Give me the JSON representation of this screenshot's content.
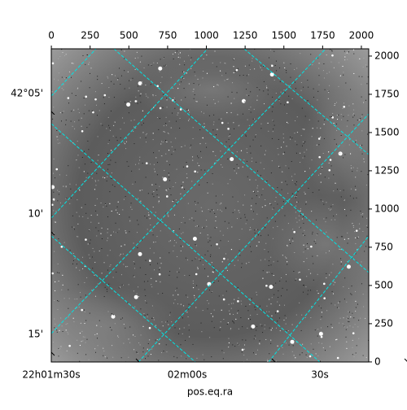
{
  "chart_data": {
    "type": "image",
    "xlabel": "pos.eq.ra",
    "xlim": [
      -0.5,
      2047.5
    ],
    "xticks": [
      0,
      250,
      500,
      750,
      1000,
      1250,
      1500,
      1750,
      2000
    ],
    "ylim": [
      -0.5,
      2047.5
    ],
    "yticks": [
      0,
      250,
      500,
      750,
      1000,
      1250,
      1500,
      1750,
      2000
    ],
    "ra_tick_labels": [
      "22h01m30s",
      "02m00s",
      "30s"
    ],
    "dec_tick_labels": [
      "42°05'",
      "10'",
      "15'"
    ],
    "grid": true,
    "grid_color": "#00e5e5",
    "cmap": "gray"
  }
}
